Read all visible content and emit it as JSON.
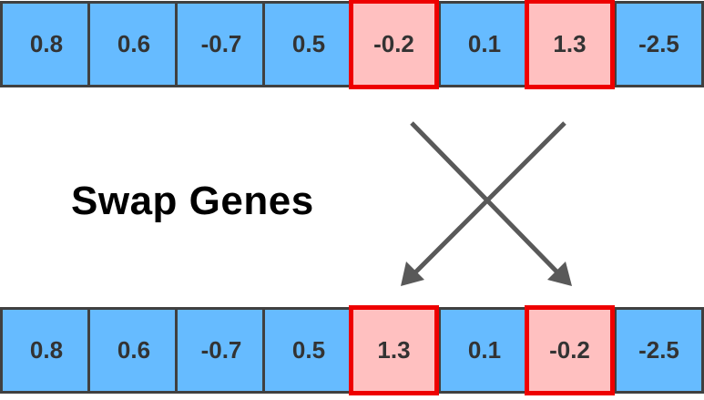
{
  "title": "Swap Genes",
  "parent_chromosome": {
    "genes": [
      "0.8",
      "0.6",
      "-0.7",
      "0.5",
      "-0.2",
      "0.1",
      "1.3",
      "-2.5"
    ],
    "highlighted_indices": [
      4,
      6
    ]
  },
  "child_chromosome": {
    "genes": [
      "0.8",
      "0.6",
      "-0.7",
      "0.5",
      "1.3",
      "0.1",
      "-0.2",
      "-2.5"
    ],
    "highlighted_indices": [
      4,
      6
    ]
  },
  "colors": {
    "gene_fill": "#66bbff",
    "swapped_fill": "#ffc0c0",
    "swapped_border": "#ee0000",
    "gene_border": "#404040",
    "arrow": "#595959"
  },
  "icons": [
    "swap-arrow-icon",
    "swap-arrow-icon"
  ]
}
